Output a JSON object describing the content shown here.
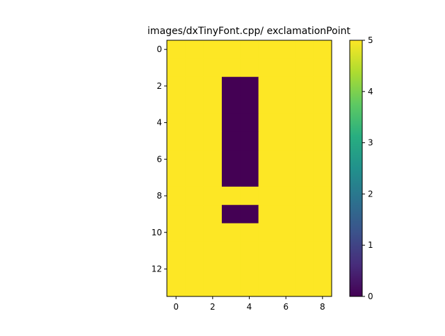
{
  "chart_data": {
    "type": "heatmap",
    "title": "images/dxTinyFont.cpp/ exclamationPoint",
    "xlabel": "",
    "ylabel": "",
    "rows": 14,
    "cols": 9,
    "xlim": [
      -0.5,
      8.5
    ],
    "ylim": [
      13.5,
      -0.5
    ],
    "x_ticks": [
      0,
      2,
      4,
      6,
      8
    ],
    "y_ticks": [
      0,
      2,
      4,
      6,
      8,
      10,
      12
    ],
    "values": [
      [
        5,
        5,
        5,
        5,
        5,
        5,
        5,
        5,
        5
      ],
      [
        5,
        5,
        5,
        5,
        5,
        5,
        5,
        5,
        5
      ],
      [
        5,
        5,
        5,
        0,
        0,
        5,
        5,
        5,
        5
      ],
      [
        5,
        5,
        5,
        0,
        0,
        5,
        5,
        5,
        5
      ],
      [
        5,
        5,
        5,
        0,
        0,
        5,
        5,
        5,
        5
      ],
      [
        5,
        5,
        5,
        0,
        0,
        5,
        5,
        5,
        5
      ],
      [
        5,
        5,
        5,
        0,
        0,
        5,
        5,
        5,
        5
      ],
      [
        5,
        5,
        5,
        0,
        0,
        5,
        5,
        5,
        5
      ],
      [
        5,
        5,
        5,
        5,
        5,
        5,
        5,
        5,
        5
      ],
      [
        5,
        5,
        5,
        0,
        0,
        5,
        5,
        5,
        5
      ],
      [
        5,
        5,
        5,
        5,
        5,
        5,
        5,
        5,
        5
      ],
      [
        5,
        5,
        5,
        5,
        5,
        5,
        5,
        5,
        5
      ],
      [
        5,
        5,
        5,
        5,
        5,
        5,
        5,
        5,
        5
      ],
      [
        5,
        5,
        5,
        5,
        5,
        5,
        5,
        5,
        5
      ]
    ],
    "colormap": "viridis",
    "vmin": 0,
    "vmax": 5,
    "colorbar_ticks": [
      0,
      1,
      2,
      3,
      4,
      5
    ],
    "grid": false
  }
}
